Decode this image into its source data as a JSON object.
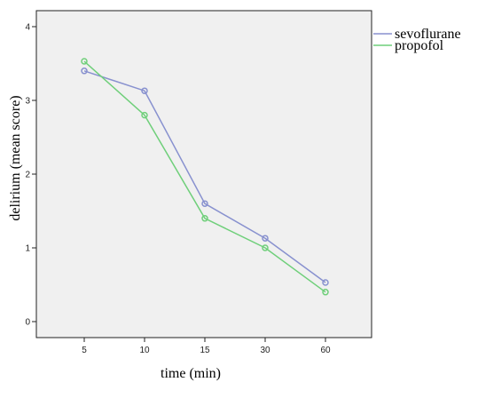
{
  "chart_data": {
    "type": "line",
    "title": "",
    "xlabel": "time (min)",
    "ylabel": "delirium (mean score)",
    "categories": [
      "5",
      "10",
      "15",
      "30",
      "60"
    ],
    "ylim": [
      0,
      4
    ],
    "yticks": [
      "0",
      "1",
      "2",
      "3",
      "4"
    ],
    "grid": false,
    "legend_position": "top-right, outside plot",
    "series": [
      {
        "name": "sevoflurane",
        "color": "#8891cf",
        "values": [
          3.4,
          3.13,
          1.6,
          1.13,
          0.53
        ]
      },
      {
        "name": "propofol",
        "color": "#6fcf7a",
        "values": [
          3.53,
          2.8,
          1.4,
          1.0,
          0.4
        ]
      }
    ],
    "plot_background": "#f0f0f0"
  }
}
